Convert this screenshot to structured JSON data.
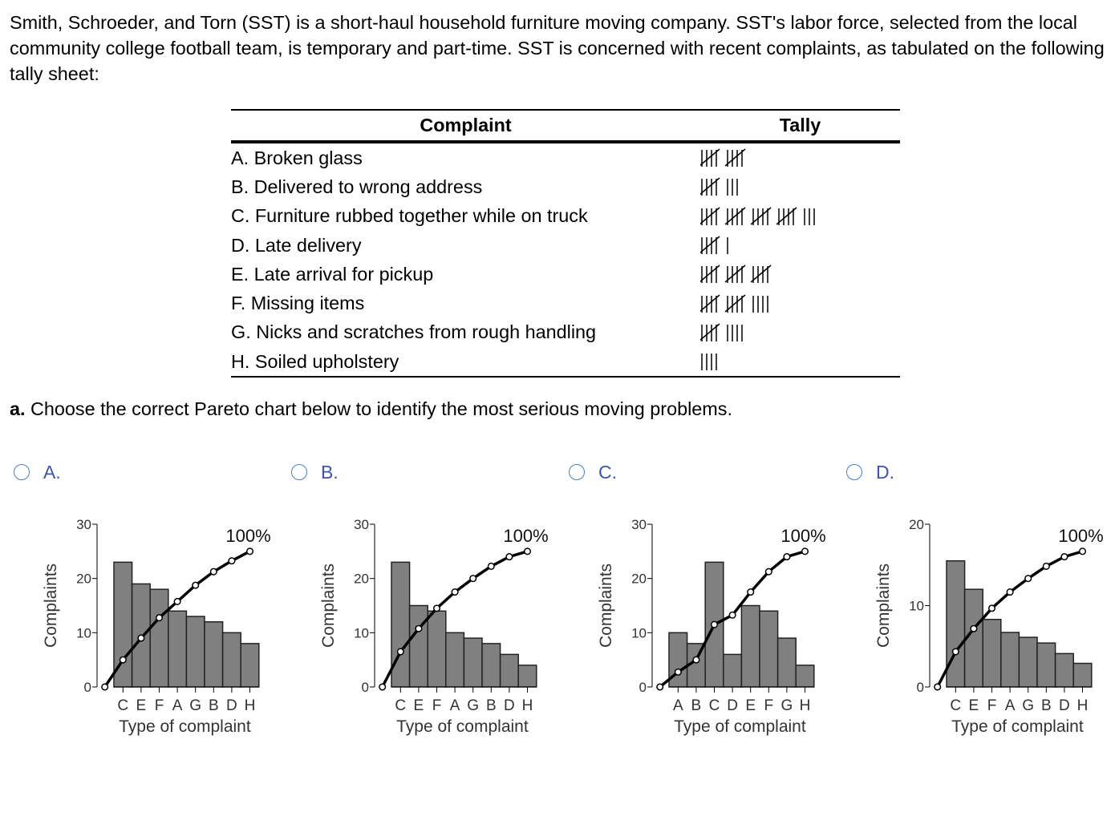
{
  "intro": "Smith, Schroeder, and Torn (SST) is a short-haul household furniture moving company. SST's labor force, selected from the local community college football team, is temporary and part-time. SST is concerned with recent complaints, as tabulated on the following tally sheet:",
  "table": {
    "headers": [
      "Complaint",
      "Tally"
    ],
    "rows": [
      {
        "complaint": "A. Broken glass",
        "tally": 10
      },
      {
        "complaint": "B. Delivered to wrong address",
        "tally": 8
      },
      {
        "complaint": "C. Furniture rubbed together while on truck",
        "tally": 23
      },
      {
        "complaint": "D. Late delivery",
        "tally": 6
      },
      {
        "complaint": "E. Late arrival for pickup",
        "tally": 15
      },
      {
        "complaint": "F. Missing items",
        "tally": 14
      },
      {
        "complaint": "G. Nicks and scratches from rough handling",
        "tally": 9
      },
      {
        "complaint": "H. Soiled upholstery",
        "tally": 4
      }
    ]
  },
  "question": {
    "label": "a.",
    "text": "Choose the correct Pareto chart below to identify the most serious moving problems."
  },
  "options": [
    {
      "letter": "A.",
      "chart_data": {
        "type": "pareto",
        "xlabel": "Type of complaint",
        "ylabel": "Complaints",
        "color": "#808080",
        "categories": [
          "C",
          "E",
          "F",
          "A",
          "G",
          "B",
          "D",
          "H"
        ],
        "values": [
          23,
          19,
          18,
          14,
          13,
          12,
          10,
          8
        ],
        "ylim": [
          0,
          30
        ],
        "yticks": [
          0,
          10,
          20,
          30
        ],
        "cumulative": {
          "values": [
            0,
            20,
            36,
            51,
            63,
            75,
            85,
            93,
            100
          ],
          "color": "#000000",
          "end_label": "100%"
        },
        "y2lim": [
          0,
          120
        ]
      }
    },
    {
      "letter": "B.",
      "chart_data": {
        "type": "pareto",
        "xlabel": "Type of complaint",
        "ylabel": "Complaints",
        "color": "#808080",
        "categories": [
          "C",
          "E",
          "F",
          "A",
          "G",
          "B",
          "D",
          "H"
        ],
        "values": [
          23,
          15,
          14,
          10,
          9,
          8,
          6,
          4
        ],
        "ylim": [
          0,
          30
        ],
        "yticks": [
          0,
          10,
          20,
          30
        ],
        "cumulative": {
          "values": [
            0,
            26,
            43,
            58,
            70,
            80,
            89,
            96,
            100
          ],
          "color": "#000000",
          "end_label": "100%"
        },
        "y2lim": [
          0,
          120
        ]
      }
    },
    {
      "letter": "C.",
      "chart_data": {
        "type": "pareto",
        "xlabel": "Type of complaint",
        "ylabel": "Complaints",
        "color": "#808080",
        "categories": [
          "A",
          "B",
          "C",
          "D",
          "E",
          "F",
          "G",
          "H"
        ],
        "values": [
          10,
          8,
          23,
          6,
          15,
          14,
          9,
          4
        ],
        "ylim": [
          0,
          30
        ],
        "yticks": [
          0,
          10,
          20,
          30
        ],
        "cumulative": {
          "values": [
            0,
            11,
            20,
            46,
            53,
            70,
            85,
            96,
            100
          ],
          "color": "#000000",
          "end_label": "100%"
        },
        "y2lim": [
          0,
          120
        ]
      }
    },
    {
      "letter": "D.",
      "chart_data": {
        "type": "pareto",
        "xlabel": "Type of complaint",
        "ylabel": "Complaints",
        "color": "#808080",
        "categories": [
          "C",
          "E",
          "F",
          "A",
          "G",
          "B",
          "D",
          "H"
        ],
        "values": [
          15.5,
          12,
          8.3,
          6.7,
          6.1,
          5.4,
          4.1,
          2.9
        ],
        "ylim": [
          0,
          20
        ],
        "yticks": [
          0,
          10,
          20
        ],
        "cumulative": {
          "values": [
            0,
            26,
            43,
            58,
            70,
            80,
            89,
            96,
            100
          ],
          "color": "#000000",
          "end_label": "100%"
        },
        "y2lim": [
          0,
          120
        ]
      }
    }
  ]
}
